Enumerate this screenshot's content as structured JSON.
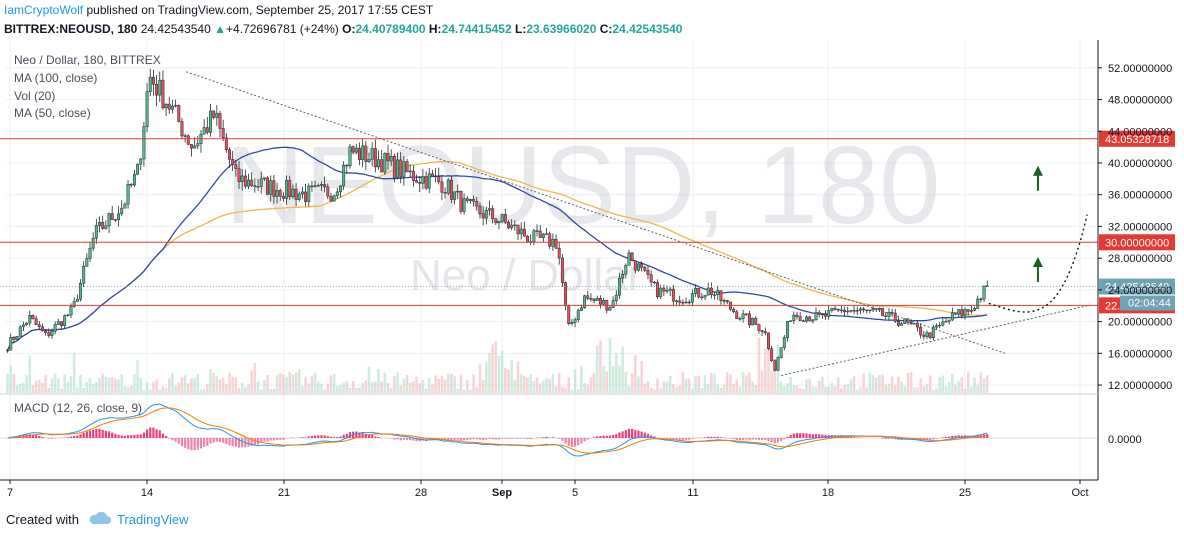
{
  "header": {
    "author": "IamCryptoWolf",
    "published": "published on TradingView.com, September 25, 2017 17:55 CEST",
    "symbol": "BITTREX:NEOUSD, 180",
    "last": "24.42543540",
    "arrow": "▲",
    "change": "+4.72696781 (+24%)",
    "o_label": "O:",
    "o_val": "24.40789400",
    "h_label": "H:",
    "h_val": "24.74415452",
    "l_label": "L:",
    "l_val": "23.63966020",
    "c_label": "C:",
    "c_val": "24.42543540"
  },
  "legend": [
    "Neo / Dollar, 180, BITTREX",
    "MA (100, close)",
    "Vol (20)",
    "MA (50, close)"
  ],
  "watermark": {
    "big": "NEOUSD, 180",
    "small": "Neo / Dollar"
  },
  "macd_label": "MACD (12, 26, close, 9)",
  "macd_zero_label": "0.0000",
  "footer": {
    "created": "Created with",
    "brand": "TradingView"
  },
  "colors": {
    "up": "#53b987",
    "down": "#eb4d5c",
    "ma100": "#f0b84a",
    "ma50": "#2f4aa5",
    "hline": "#e53935",
    "macd": "#2196f3",
    "signal": "#f57c00",
    "hist_up": "#e91e63",
    "arrow": "#1b5e20",
    "last_tag": "#6da3b5"
  },
  "chart_data": {
    "type": "candlestick",
    "x_ticks": [
      "7",
      "14",
      "21",
      "28",
      "Sep",
      "5",
      "11",
      "18",
      "25",
      "Oct"
    ],
    "y_ticks": [
      "12.00000000",
      "16.00000000",
      "20.00000000",
      "24.00000000",
      "28.00000000",
      "32.00000000",
      "36.00000000",
      "40.00000000",
      "44.00000000",
      "48.00000000",
      "52.00000000"
    ],
    "ylim": [
      11,
      55
    ],
    "horizontal_levels": [
      {
        "value": 43.05328718,
        "label": "43.05328718"
      },
      {
        "value": 30.0,
        "label": "30.00000000"
      },
      {
        "value": 22.05121824,
        "label": "22.05121824"
      }
    ],
    "last_price": {
      "value": 24.4254354,
      "label": "24.42543540",
      "timer": "02:04:44"
    },
    "trendlines": [
      {
        "from": [
          0.165,
          51.5
        ],
        "to": [
          0.915,
          16.0
        ],
        "style": "dotted"
      },
      {
        "from": [
          0.71,
          13.2
        ],
        "to": [
          0.99,
          22.0
        ],
        "style": "dotted"
      }
    ],
    "anchors": [
      {
        "t": 0.0,
        "p": 17.0
      },
      {
        "t": 0.02,
        "p": 20.5
      },
      {
        "t": 0.035,
        "p": 18.2
      },
      {
        "t": 0.06,
        "p": 21.5
      },
      {
        "t": 0.08,
        "p": 31.0
      },
      {
        "t": 0.105,
        "p": 34.5
      },
      {
        "t": 0.12,
        "p": 39.0
      },
      {
        "t": 0.13,
        "p": 51.0
      },
      {
        "t": 0.15,
        "p": 47.0
      },
      {
        "t": 0.17,
        "p": 42.0
      },
      {
        "t": 0.19,
        "p": 46.0
      },
      {
        "t": 0.21,
        "p": 38.0
      },
      {
        "t": 0.24,
        "p": 37.0
      },
      {
        "t": 0.275,
        "p": 36.0
      },
      {
        "t": 0.3,
        "p": 36.5
      },
      {
        "t": 0.315,
        "p": 41.5
      },
      {
        "t": 0.34,
        "p": 40.5
      },
      {
        "t": 0.37,
        "p": 38.5
      },
      {
        "t": 0.4,
        "p": 37.5
      },
      {
        "t": 0.42,
        "p": 34.5
      },
      {
        "t": 0.45,
        "p": 33.0
      },
      {
        "t": 0.48,
        "p": 30.5
      },
      {
        "t": 0.505,
        "p": 30.0
      },
      {
        "t": 0.515,
        "p": 19.0
      },
      {
        "t": 0.53,
        "p": 23.0
      },
      {
        "t": 0.555,
        "p": 22.0
      },
      {
        "t": 0.57,
        "p": 28.5
      },
      {
        "t": 0.595,
        "p": 24.0
      },
      {
        "t": 0.62,
        "p": 23.0
      },
      {
        "t": 0.645,
        "p": 24.0
      },
      {
        "t": 0.67,
        "p": 21.0
      },
      {
        "t": 0.695,
        "p": 19.0
      },
      {
        "t": 0.705,
        "p": 14.0
      },
      {
        "t": 0.72,
        "p": 21.0
      },
      {
        "t": 0.745,
        "p": 20.5
      },
      {
        "t": 0.77,
        "p": 21.5
      },
      {
        "t": 0.8,
        "p": 21.0
      },
      {
        "t": 0.825,
        "p": 19.8
      },
      {
        "t": 0.845,
        "p": 18.2
      },
      {
        "t": 0.87,
        "p": 20.8
      },
      {
        "t": 0.885,
        "p": 21.5
      },
      {
        "t": 0.9,
        "p": 24.4
      }
    ],
    "projection": [
      [
        0.9,
        22.3
      ],
      [
        0.935,
        20.8
      ],
      [
        0.965,
        22.5
      ],
      [
        0.99,
        33.5
      ]
    ],
    "up_arrows": [
      [
        0.945,
        36.5
      ],
      [
        0.945,
        25.0
      ]
    ]
  }
}
